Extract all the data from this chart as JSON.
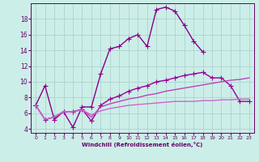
{
  "background_color": "#cceee8",
  "grid_color": "#aacccc",
  "xlabel": "Windchill (Refroidissement éolien,°C)",
  "xlim": [
    -0.5,
    23.5
  ],
  "ylim": [
    3.5,
    20.0
  ],
  "yticks": [
    4,
    6,
    8,
    10,
    12,
    14,
    16,
    18
  ],
  "xticks": [
    0,
    1,
    2,
    3,
    4,
    5,
    6,
    7,
    8,
    9,
    10,
    11,
    12,
    13,
    14,
    15,
    16,
    17,
    18,
    19,
    20,
    21,
    22,
    23
  ],
  "lines": [
    {
      "x": [
        0,
        1,
        2,
        3,
        4,
        5,
        6,
        7,
        8,
        9,
        10,
        11,
        12,
        13,
        14,
        15,
        16,
        17,
        18
      ],
      "y": [
        7.0,
        9.5,
        5.2,
        6.2,
        4.2,
        6.8,
        6.8,
        11.0,
        14.2,
        14.5,
        15.5,
        16.0,
        14.5,
        19.2,
        19.5,
        19.0,
        17.2,
        15.2,
        13.8
      ],
      "color": "#880088",
      "linewidth": 1.0,
      "marker": "+",
      "markersize": 4
    },
    {
      "x": [
        0,
        1,
        2,
        3,
        4,
        5,
        6,
        7,
        8,
        9,
        10,
        11,
        12,
        13,
        14,
        15,
        16,
        17,
        18,
        19,
        20,
        21,
        22,
        23
      ],
      "y": [
        7.0,
        5.2,
        5.5,
        6.2,
        6.2,
        6.5,
        5.0,
        7.0,
        7.8,
        8.2,
        8.8,
        9.2,
        9.5,
        10.0,
        10.2,
        10.5,
        10.8,
        11.0,
        11.2,
        10.5,
        10.5,
        9.5,
        7.5,
        7.5
      ],
      "color": "#990099",
      "linewidth": 1.0,
      "marker": "+",
      "markersize": 4
    },
    {
      "x": [
        0,
        1,
        2,
        3,
        4,
        5,
        6,
        7,
        8,
        9,
        10,
        11,
        12,
        13,
        14,
        15,
        16,
        17,
        18,
        19,
        20,
        21,
        22,
        23
      ],
      "y": [
        7.0,
        5.2,
        5.5,
        6.2,
        6.2,
        6.5,
        5.5,
        6.8,
        7.2,
        7.5,
        7.8,
        8.0,
        8.3,
        8.5,
        8.8,
        9.0,
        9.2,
        9.4,
        9.6,
        9.8,
        10.0,
        10.2,
        10.3,
        10.5
      ],
      "color": "#bb44bb",
      "linewidth": 1.0,
      "marker": null,
      "markersize": 0
    },
    {
      "x": [
        0,
        1,
        2,
        3,
        4,
        5,
        6,
        7,
        8,
        9,
        10,
        11,
        12,
        13,
        14,
        15,
        16,
        17,
        18,
        19,
        20,
        21,
        22,
        23
      ],
      "y": [
        7.0,
        5.2,
        5.5,
        6.2,
        6.2,
        6.4,
        5.8,
        6.3,
        6.6,
        6.8,
        7.0,
        7.1,
        7.2,
        7.3,
        7.4,
        7.5,
        7.5,
        7.5,
        7.6,
        7.6,
        7.7,
        7.7,
        7.8,
        7.8
      ],
      "color": "#cc66cc",
      "linewidth": 1.0,
      "marker": null,
      "markersize": 0
    }
  ]
}
